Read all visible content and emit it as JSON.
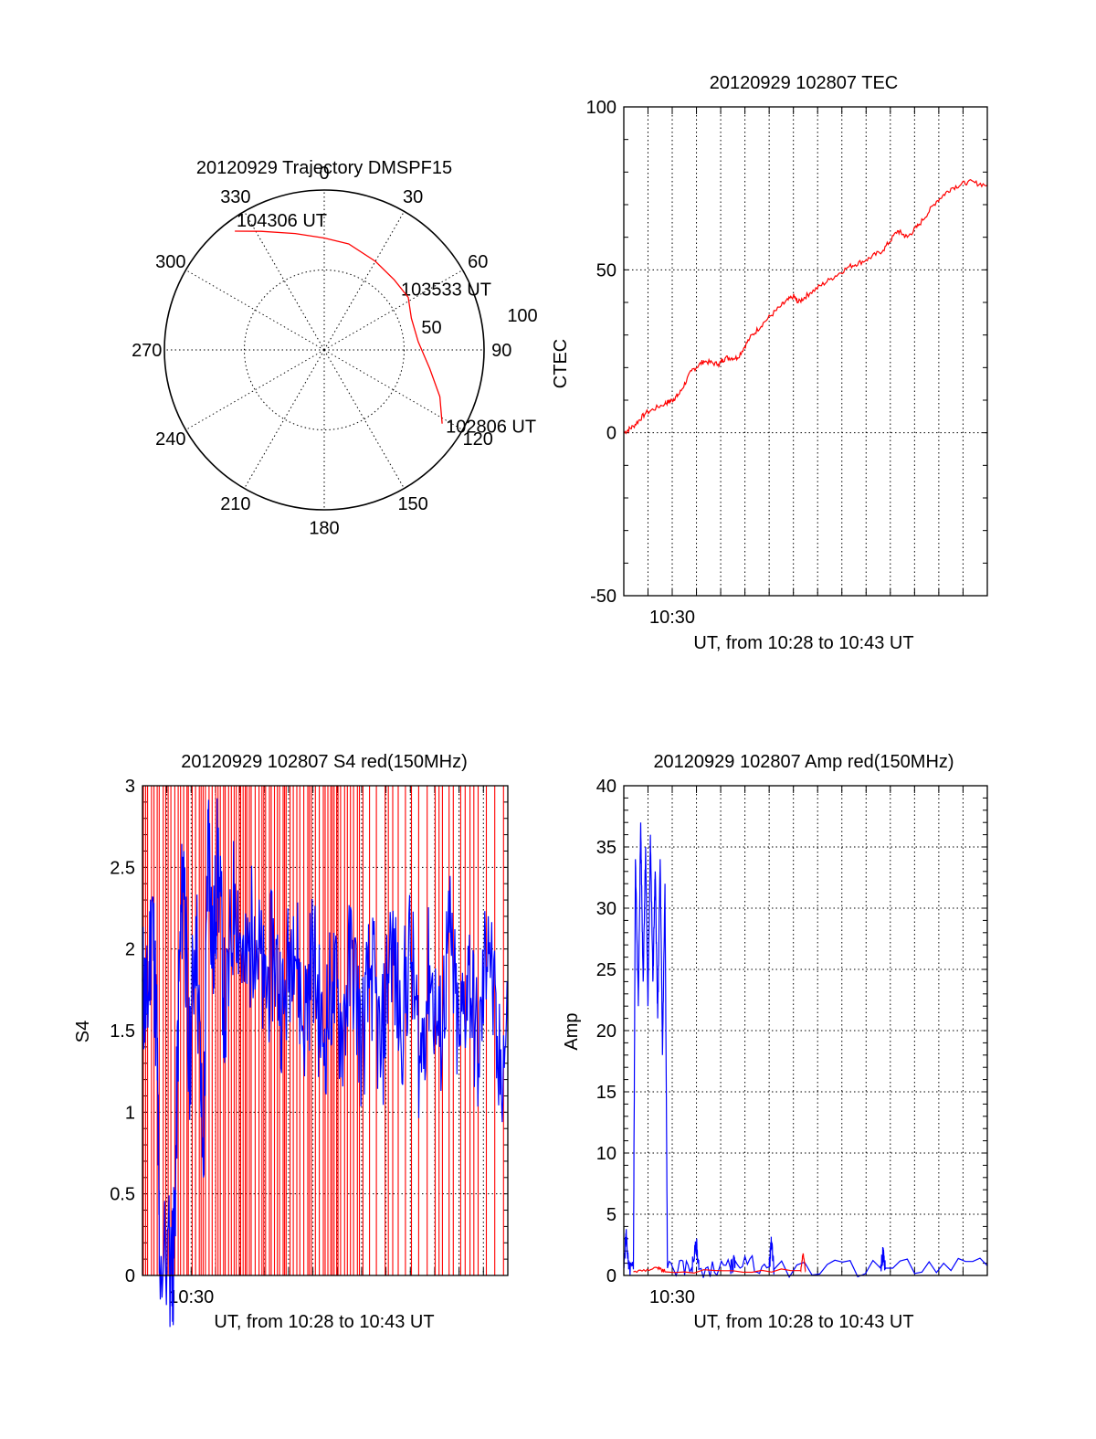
{
  "chart_data": [
    {
      "type": "polar",
      "title": "20120929 Trajectory DMSPF15",
      "azimuth_labels": [
        "0",
        "30",
        "60",
        "90",
        "120",
        "150",
        "180",
        "210",
        "240",
        "270",
        "300",
        "330"
      ],
      "ring_labels": [
        "50",
        "100"
      ],
      "rlim": [
        0,
        100
      ],
      "trajectory_color": "#ff0000",
      "trajectory": [
        {
          "az": 122,
          "r": 87
        },
        {
          "az": 112,
          "r": 78
        },
        {
          "az": 100,
          "r": 67
        },
        {
          "az": 85,
          "r": 59
        },
        {
          "az": 70,
          "r": 58
        },
        {
          "az": 58,
          "r": 62
        },
        {
          "az": 45,
          "r": 62
        },
        {
          "az": 30,
          "r": 64
        },
        {
          "az": 13,
          "r": 68
        },
        {
          "az": 0,
          "r": 70
        },
        {
          "az": -14,
          "r": 75
        },
        {
          "az": -28,
          "r": 84
        },
        {
          "az": -37,
          "r": 93
        }
      ],
      "annotations": [
        {
          "text": "104306 UT",
          "az": -37,
          "r": 93
        },
        {
          "text": "103533 UT",
          "az": 58,
          "r": 62
        },
        {
          "text": "102806 UT",
          "az": 122,
          "r": 87
        }
      ]
    },
    {
      "type": "line",
      "title": "20120929 102807 TEC",
      "xlabel": "UT, from 10:28 to 10:43 UT",
      "ylabel": "CTEC",
      "xlim": [
        10.4667,
        10.7167
      ],
      "ylim": [
        -50,
        100
      ],
      "yticks": [
        -50,
        0,
        50,
        100
      ],
      "xtick_labels": [
        {
          "x": 10.5,
          "label": "10:30"
        }
      ],
      "grid": true,
      "series": [
        {
          "color": "#ff0000",
          "points": [
            [
              10.4667,
              0
            ],
            [
              10.4733,
              2
            ],
            [
              10.4817,
              6
            ],
            [
              10.495,
              9
            ],
            [
              10.5,
              10
            ],
            [
              10.505,
              12
            ],
            [
              10.5133,
              19
            ],
            [
              10.5217,
              22
            ],
            [
              10.5317,
              21
            ],
            [
              10.5367,
              23
            ],
            [
              10.545,
              23
            ],
            [
              10.5533,
              29
            ],
            [
              10.5633,
              34
            ],
            [
              10.575,
              39
            ],
            [
              10.5833,
              42
            ],
            [
              10.5867,
              40
            ],
            [
              10.595,
              43
            ],
            [
              10.6083,
              47
            ],
            [
              10.6217,
              51
            ],
            [
              10.6333,
              53
            ],
            [
              10.645,
              56
            ],
            [
              10.655,
              62
            ],
            [
              10.6617,
              60
            ],
            [
              10.67,
              64
            ],
            [
              10.6817,
              71
            ],
            [
              10.6917,
              75
            ],
            [
              10.7033,
              77
            ],
            [
              10.7167,
              76
            ]
          ]
        }
      ]
    },
    {
      "type": "line",
      "title": "20120929 102807 S4 red(150MHz)",
      "xlabel": "UT, from 10:28 to 10:43 UT",
      "ylabel": "S4",
      "xlim": [
        10.4667,
        10.7167
      ],
      "ylim": [
        0,
        3
      ],
      "yticks": [
        0,
        0.5,
        1,
        1.5,
        2,
        2.5,
        3
      ],
      "xtick_labels": [
        {
          "x": 10.5,
          "label": "10:30"
        }
      ],
      "grid": true,
      "series": [
        {
          "color": "#ff0000",
          "description_points": "dense full-height vertical spikes from 0 to 3 across the whole interval"
        },
        {
          "color": "#0000ff",
          "points": [
            [
              10.4667,
              1.8
            ],
            [
              10.47,
              1.6
            ],
            [
              10.4733,
              2.3
            ],
            [
              10.4767,
              1.4
            ],
            [
              10.4783,
              0.12
            ],
            [
              10.4867,
              0.1
            ],
            [
              10.4883,
              0.12
            ],
            [
              10.4917,
              1.8
            ],
            [
              10.495,
              2.6
            ],
            [
              10.4983,
              1.2
            ],
            [
              10.5033,
              2.2
            ],
            [
              10.5083,
              0.6
            ],
            [
              10.5117,
              2.8
            ],
            [
              10.515,
              1.9
            ],
            [
              10.5183,
              2.6
            ],
            [
              10.5233,
              1.5
            ],
            [
              10.53,
              2.4
            ],
            [
              10.5367,
              1.8
            ],
            [
              10.5433,
              2.2
            ],
            [
              10.55,
              1.7
            ],
            [
              10.5567,
              2.0
            ],
            [
              10.5633,
              1.6
            ],
            [
              10.57,
              2.2
            ],
            [
              10.5767,
              1.5
            ],
            [
              10.5833,
              2.0
            ],
            [
              10.59,
              1.4
            ],
            [
              10.5967,
              1.8
            ],
            [
              10.6033,
              1.5
            ],
            [
              10.61,
              2.0
            ],
            [
              10.6167,
              1.4
            ],
            [
              10.6233,
              1.9
            ],
            [
              10.63,
              1.3
            ],
            [
              10.6367,
              2.1
            ],
            [
              10.6433,
              1.5
            ],
            [
              10.65,
              2.0
            ],
            [
              10.6567,
              1.3
            ],
            [
              10.6633,
              1.9
            ],
            [
              10.67,
              1.4
            ],
            [
              10.6767,
              2.1
            ],
            [
              10.6833,
              1.4
            ],
            [
              10.69,
              1.9
            ],
            [
              10.6967,
              1.3
            ],
            [
              10.7033,
              2.2
            ],
            [
              10.71,
              1.2
            ],
            [
              10.7167,
              1.5
            ]
          ]
        }
      ]
    },
    {
      "type": "line",
      "title": "20120929 102807 Amp red(150MHz)",
      "xlabel": "UT, from 10:28 to 10:43 UT",
      "ylabel": "Amp",
      "xlim": [
        10.4667,
        10.7167
      ],
      "ylim": [
        0,
        40
      ],
      "yticks": [
        0,
        5,
        10,
        15,
        20,
        25,
        30,
        35,
        40
      ],
      "xtick_labels": [
        {
          "x": 10.5,
          "label": "10:30"
        }
      ],
      "grid": true,
      "series": [
        {
          "color": "#0000ff",
          "points": [
            [
              10.4667,
              0.6
            ],
            [
              10.4683,
              3.5
            ],
            [
              10.47,
              0.5
            ],
            [
              10.4733,
              0.5
            ],
            [
              10.4747,
              34
            ],
            [
              10.4767,
              22
            ],
            [
              10.4783,
              37
            ],
            [
              10.48,
              24
            ],
            [
              10.4817,
              35
            ],
            [
              10.4833,
              22
            ],
            [
              10.485,
              36
            ],
            [
              10.4867,
              24
            ],
            [
              10.4883,
              33
            ],
            [
              10.49,
              21
            ],
            [
              10.4917,
              34
            ],
            [
              10.4933,
              18
            ],
            [
              10.495,
              32
            ],
            [
              10.4967,
              0.6
            ],
            [
              10.5133,
              0.6
            ],
            [
              10.5167,
              2.5
            ],
            [
              10.5183,
              0.5
            ],
            [
              10.54,
              0.6
            ],
            [
              10.5433,
              1.2
            ],
            [
              10.5667,
              0.7
            ],
            [
              10.5683,
              2.8
            ],
            [
              10.57,
              0.5
            ],
            [
              10.6433,
              0.6
            ],
            [
              10.645,
              1.8
            ],
            [
              10.6467,
              0.6
            ],
            [
              10.7167,
              0.8
            ]
          ]
        },
        {
          "color": "#ff0000",
          "points": [
            [
              10.4733,
              0.3
            ],
            [
              10.49,
              0.6
            ],
            [
              10.495,
              0.3
            ],
            [
              10.5883,
              0.4
            ],
            [
              10.59,
              1.8
            ],
            [
              10.5917,
              0.4
            ]
          ]
        }
      ]
    }
  ]
}
